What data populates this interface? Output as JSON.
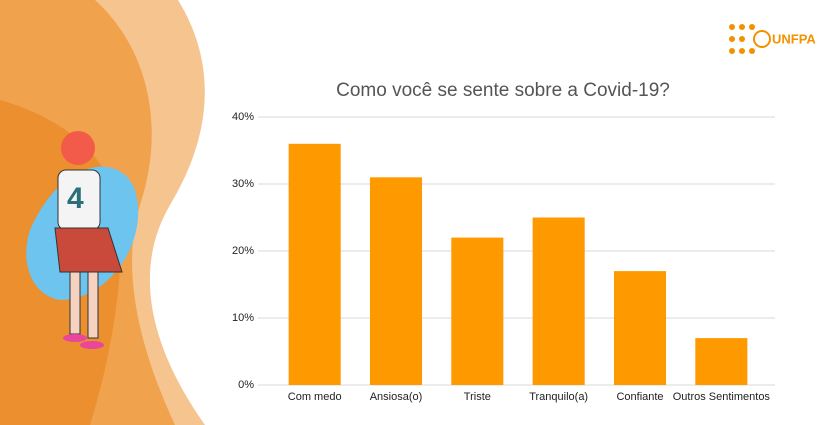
{
  "brand": "UNFPA",
  "chart_data": {
    "type": "bar",
    "title": "Como você se sente sobre a Covid-19?",
    "categories": [
      "Com medo",
      "Ansiosa(o)",
      "Triste",
      "Tranquilo(a)",
      "Confiante",
      "Outros Sentimentos"
    ],
    "values": [
      36,
      31,
      22,
      25,
      17,
      7
    ],
    "color": "#ff9900",
    "ylim": [
      0,
      40
    ],
    "yticks": [
      {
        "value": 0,
        "label": "0%"
      },
      {
        "value": 10,
        "label": "10%"
      },
      {
        "value": 20,
        "label": "20%"
      },
      {
        "value": 30,
        "label": "30%"
      },
      {
        "value": 40,
        "label": "40%"
      }
    ],
    "grid": true
  }
}
